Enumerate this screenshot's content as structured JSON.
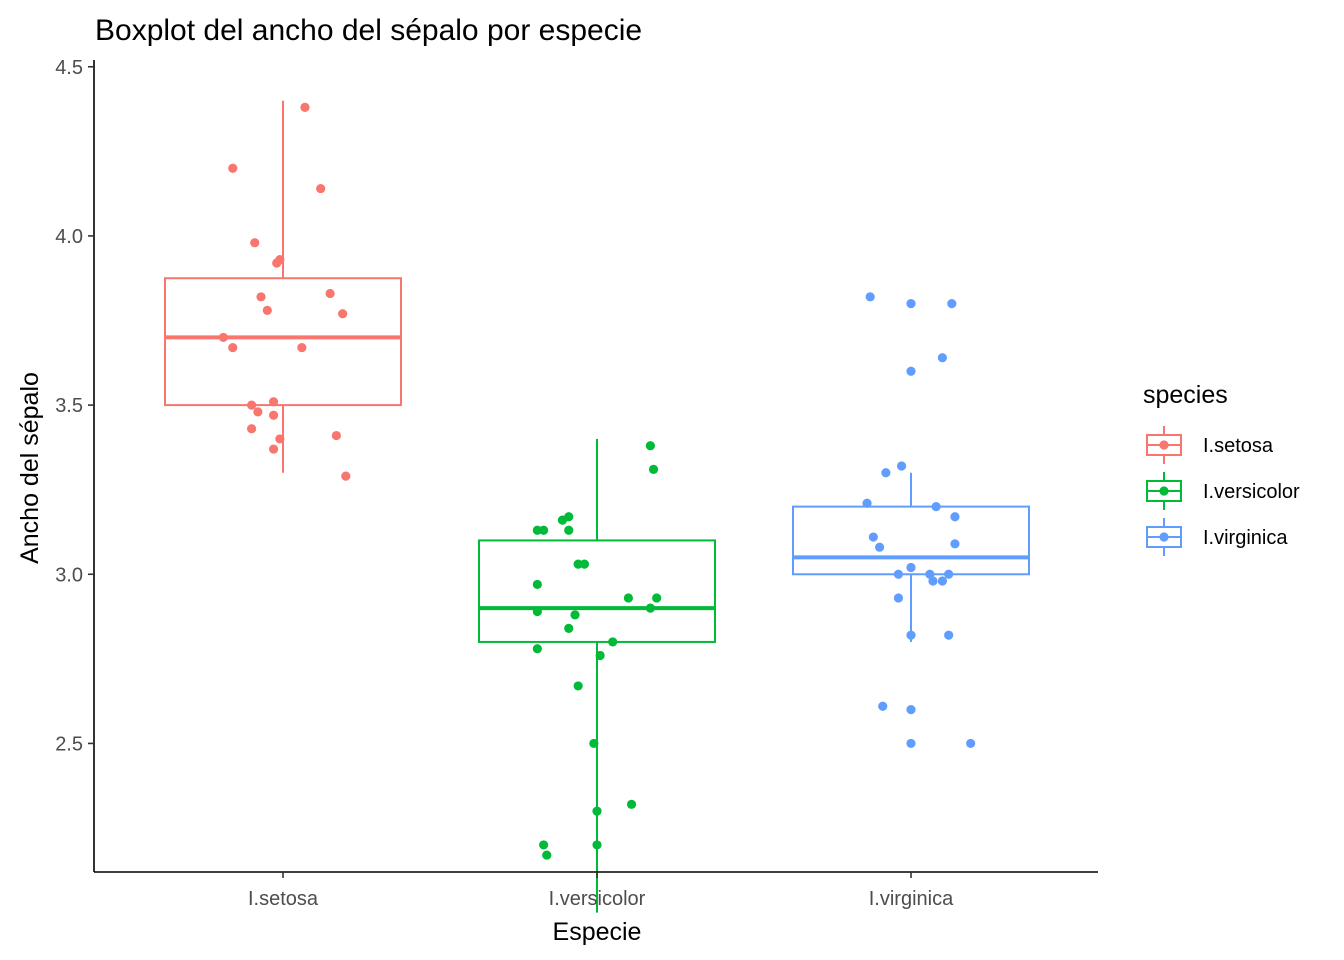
{
  "chart_data": {
    "type": "boxplot",
    "title": "Boxplot del ancho del sépalo por especie",
    "xlabel": "Especie",
    "ylabel": "Ancho del sépalo",
    "categories": [
      "I.setosa",
      "I.versicolor",
      "I.virginica"
    ],
    "ylim": [
      2.12,
      4.52
    ],
    "yticks": [
      2.5,
      3.0,
      3.5,
      4.0,
      4.5
    ],
    "ytick_labels": [
      "2.5",
      "3.0",
      "3.5",
      "4.0",
      "4.5"
    ],
    "grid": false,
    "legend": {
      "title": "species",
      "position": "right",
      "entries": [
        "I.setosa",
        "I.versicolor",
        "I.virginica"
      ]
    },
    "colors": {
      "I.setosa": "#F8766D",
      "I.versicolor": "#00BA38",
      "I.virginica": "#619CFF"
    },
    "series": [
      {
        "name": "I.setosa",
        "box": {
          "min": 3.3,
          "q1": 3.5,
          "median": 3.7,
          "q3": 3.875,
          "max": 4.4
        },
        "points": [
          [
            -0.16,
            4.2
          ],
          [
            0.07,
            4.38
          ],
          [
            0.12,
            4.14
          ],
          [
            -0.09,
            3.98
          ],
          [
            -0.02,
            3.92
          ],
          [
            -0.01,
            3.93
          ],
          [
            -0.07,
            3.82
          ],
          [
            -0.05,
            3.78
          ],
          [
            0.15,
            3.83
          ],
          [
            0.19,
            3.77
          ],
          [
            -0.19,
            3.7
          ],
          [
            -0.16,
            3.67
          ],
          [
            0.06,
            3.67
          ],
          [
            -0.1,
            3.5
          ],
          [
            -0.08,
            3.48
          ],
          [
            -0.03,
            3.51
          ],
          [
            -0.03,
            3.47
          ],
          [
            -0.1,
            3.43
          ],
          [
            -0.01,
            3.4
          ],
          [
            -0.03,
            3.37
          ],
          [
            0.17,
            3.41
          ],
          [
            0.2,
            3.29
          ]
        ]
      },
      {
        "name": "I.versicolor",
        "box": {
          "min": 2.0,
          "q1": 2.8,
          "median": 2.9,
          "q3": 3.1,
          "max": 3.4
        },
        "points": [
          [
            0.17,
            3.38
          ],
          [
            0.18,
            3.31
          ],
          [
            -0.11,
            3.16
          ],
          [
            -0.09,
            3.17
          ],
          [
            -0.19,
            3.13
          ],
          [
            -0.17,
            3.13
          ],
          [
            -0.09,
            3.13
          ],
          [
            -0.06,
            3.03
          ],
          [
            -0.04,
            3.03
          ],
          [
            -0.19,
            2.97
          ],
          [
            0.1,
            2.93
          ],
          [
            0.19,
            2.93
          ],
          [
            -0.19,
            2.89
          ],
          [
            -0.07,
            2.88
          ],
          [
            0.17,
            2.9
          ],
          [
            -0.09,
            2.84
          ],
          [
            0.05,
            2.8
          ],
          [
            0.01,
            2.76
          ],
          [
            -0.19,
            2.78
          ],
          [
            -0.06,
            2.67
          ],
          [
            -0.01,
            2.5
          ],
          [
            0.11,
            2.32
          ],
          [
            0.0,
            2.3
          ],
          [
            -0.17,
            2.2
          ],
          [
            0.0,
            2.2
          ],
          [
            -0.16,
            2.17
          ]
        ]
      },
      {
        "name": "I.virginica",
        "box": {
          "min": 2.8,
          "q1": 3.0,
          "median": 3.05,
          "q3": 3.2,
          "max": 3.3
        },
        "points": [
          [
            -0.13,
            3.82
          ],
          [
            0.0,
            3.8
          ],
          [
            0.13,
            3.8
          ],
          [
            0.0,
            3.6
          ],
          [
            0.1,
            3.64
          ],
          [
            -0.08,
            3.3
          ],
          [
            -0.03,
            3.32
          ],
          [
            -0.14,
            3.21
          ],
          [
            0.08,
            3.2
          ],
          [
            0.14,
            3.17
          ],
          [
            -0.12,
            3.11
          ],
          [
            -0.1,
            3.08
          ],
          [
            0.14,
            3.09
          ],
          [
            -0.04,
            3.0
          ],
          [
            0.0,
            3.02
          ],
          [
            0.06,
            3.0
          ],
          [
            0.07,
            2.98
          ],
          [
            0.1,
            2.98
          ],
          [
            0.12,
            3.0
          ],
          [
            -0.04,
            2.93
          ],
          [
            0.0,
            2.82
          ],
          [
            0.12,
            2.82
          ],
          [
            -0.09,
            2.61
          ],
          [
            0.0,
            2.6
          ],
          [
            0.0,
            2.5
          ],
          [
            0.19,
            2.5
          ]
        ]
      }
    ]
  }
}
